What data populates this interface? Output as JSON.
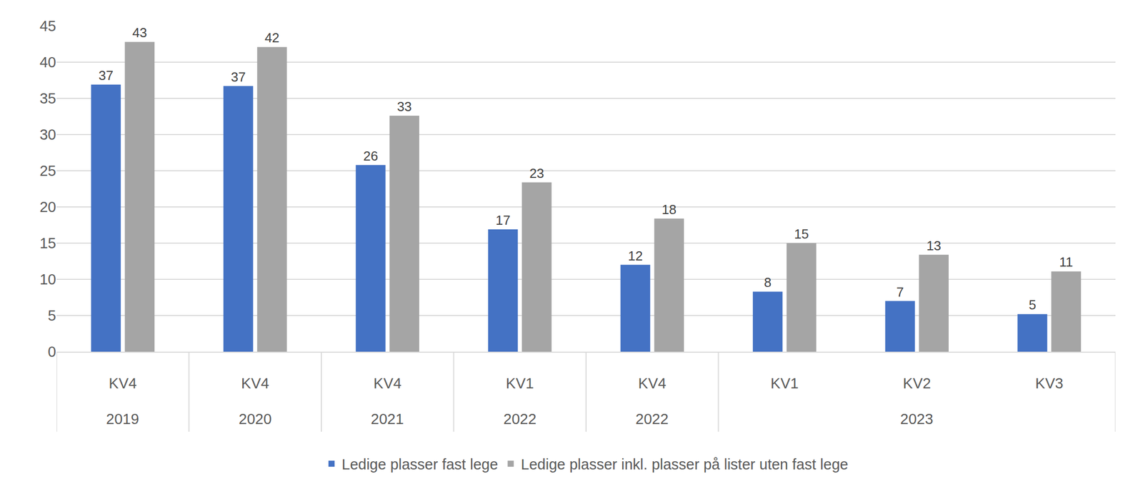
{
  "chart_data": {
    "type": "bar",
    "categories": [
      "KV4",
      "KV4",
      "KV4",
      "KV1",
      "KV4",
      "KV1",
      "KV2",
      "KV3"
    ],
    "groups": [
      {
        "label": "2019",
        "categories": [
          "KV4"
        ]
      },
      {
        "label": "2020",
        "categories": [
          "KV4"
        ]
      },
      {
        "label": "2021",
        "categories": [
          "KV4"
        ]
      },
      {
        "label": "2022",
        "categories": [
          "KV1"
        ]
      },
      {
        "label": "2022",
        "categories": [
          "KV4"
        ]
      },
      {
        "label": "2023",
        "categories": [
          "KV1",
          "KV2",
          "KV3"
        ]
      }
    ],
    "series": [
      {
        "name": "Ledige plasser fast lege",
        "color": "#4472c4",
        "values": [
          36.9,
          36.7,
          25.8,
          16.9,
          12.0,
          8.3,
          7.0,
          5.2
        ],
        "value_labels": [
          "37",
          "37",
          "26",
          "17",
          "12",
          "8",
          "7",
          "5"
        ]
      },
      {
        "name": "Ledige plasser inkl. plasser på lister uten fast lege",
        "color": "#a5a5a5",
        "values": [
          42.8,
          42.1,
          32.6,
          23.4,
          18.4,
          15.0,
          13.4,
          11.1
        ],
        "value_labels": [
          "43",
          "42",
          "33",
          "23",
          "18",
          "15",
          "13",
          "11"
        ]
      }
    ],
    "ylim": [
      0,
      45
    ],
    "yticks": [
      0,
      5,
      10,
      15,
      20,
      25,
      30,
      35,
      40,
      45
    ],
    "grid": true,
    "legend": "bottom",
    "data_labels": true
  }
}
